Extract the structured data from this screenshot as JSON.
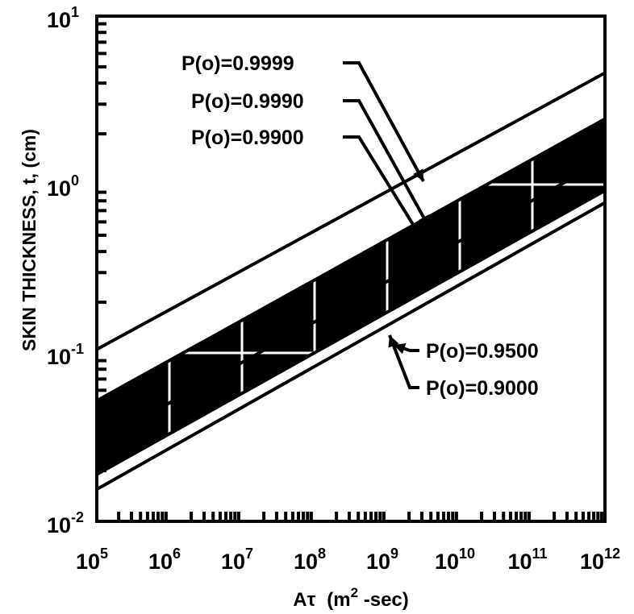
{
  "chart_data": {
    "type": "line",
    "xlabel_base": "Aτ",
    "xlabel_units_pre": "(m",
    "xlabel_units_sup": "2",
    "xlabel_units_post": " -sec)",
    "ylabel": "SKIN THICKNESS, t, (cm)",
    "xscale": "log",
    "yscale": "log",
    "xlim": [
      100000,
      1000000000000
    ],
    "ylim": [
      0.01,
      10
    ],
    "grid": true,
    "x_ticks": [
      {
        "value": 100000,
        "base": "10",
        "exp": "5"
      },
      {
        "value": 1000000,
        "base": "10",
        "exp": "6"
      },
      {
        "value": 10000000,
        "base": "10",
        "exp": "7"
      },
      {
        "value": 100000000,
        "base": "10",
        "exp": "8"
      },
      {
        "value": 1000000000,
        "base": "10",
        "exp": "9"
      },
      {
        "value": 10000000000,
        "base": "10",
        "exp": "10"
      },
      {
        "value": 100000000000,
        "base": "10",
        "exp": "11"
      },
      {
        "value": 1000000000000,
        "base": "10",
        "exp": "12"
      }
    ],
    "y_ticks": [
      {
        "value": 0.01,
        "base": "10",
        "exp": "-2"
      },
      {
        "value": 0.1,
        "base": "10",
        "exp": "-1"
      },
      {
        "value": 1,
        "base": "10",
        "exp": "0"
      },
      {
        "value": 10,
        "base": "10",
        "exp": "1"
      }
    ],
    "shaded_band": {
      "between": [
        "P(o)=0.9990",
        "P(o)=0.9500"
      ],
      "color": "#000000"
    },
    "series": [
      {
        "name": "P(o)=0.9999",
        "x": [
          100000,
          1000000000000
        ],
        "y": [
          0.105,
          4.6
        ]
      },
      {
        "name": "P(o)=0.9990",
        "x": [
          100000,
          1000000000000
        ],
        "y": [
          0.052,
          2.45
        ]
      },
      {
        "name": "P(o)=0.9900",
        "x": [
          100000,
          1000000000000
        ],
        "y": [
          0.029,
          1.4
        ]
      },
      {
        "name": "P(o)=0.9500",
        "x": [
          100000,
          1000000000000
        ],
        "y": [
          0.019,
          0.92
        ]
      },
      {
        "name": "P(o)=0.9000",
        "x": [
          100000,
          1000000000000
        ],
        "y": [
          0.0155,
          0.78
        ]
      }
    ]
  }
}
